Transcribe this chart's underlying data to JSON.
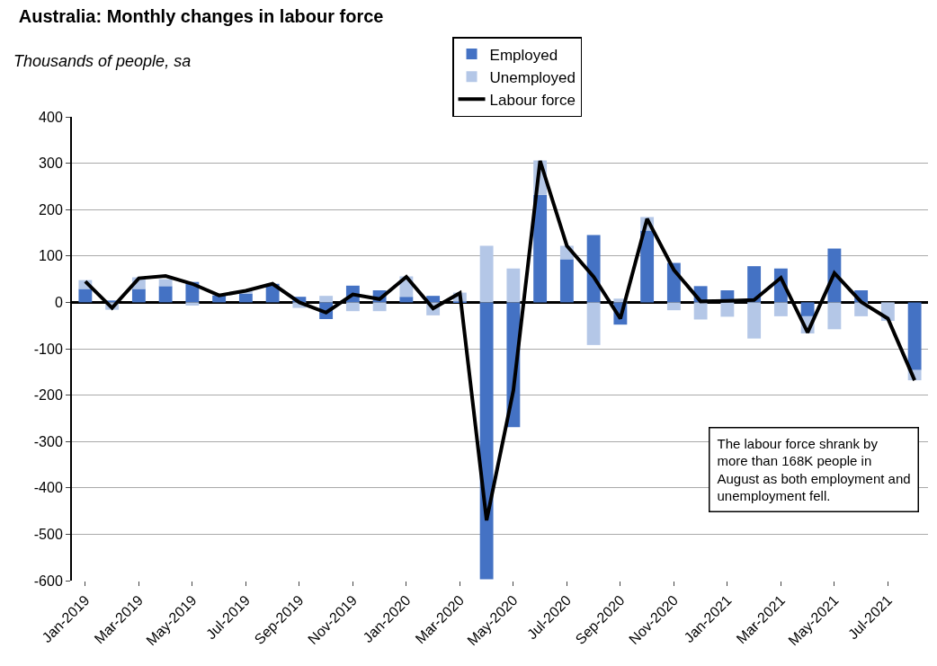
{
  "chart_data": {
    "type": "bar",
    "stacked": true,
    "title": "Australia: Monthly changes in labour force",
    "ylabel": "Thousands of people, sa",
    "categories": [
      "Jan-2019",
      null,
      "Mar-2019",
      null,
      "May-2019",
      null,
      "Jul-2019",
      null,
      "Sep-2019",
      null,
      "Nov-2019",
      null,
      "Jan-2020",
      null,
      "Mar-2020",
      null,
      "May-2020",
      null,
      "Jul-2020",
      null,
      "Sep-2020",
      null,
      "Nov-2020",
      null,
      "Jan-2021",
      null,
      "Mar-2021",
      null,
      "May-2021",
      null,
      "Jul-2021",
      null
    ],
    "series": [
      {
        "name": "Employed",
        "color": "#4472c4",
        "values": [
          29,
          4,
          29,
          35,
          44,
          15,
          19,
          40,
          12,
          -36,
          36,
          26,
          12,
          14,
          2,
          -597,
          -269,
          232,
          93,
          145,
          -48,
          155,
          85,
          35,
          26,
          78,
          73,
          -30,
          116,
          26,
          null,
          -146
        ]
      },
      {
        "name": "Unemployed",
        "color": "#b4c7e7",
        "values": [
          19,
          -16,
          25,
          15,
          -7,
          0,
          5,
          null,
          -12,
          14,
          -19,
          -19,
          44,
          -28,
          19,
          122,
          73,
          74,
          29,
          -92,
          8,
          29,
          -17,
          -37,
          -31,
          -78,
          -30,
          -37,
          -58,
          -30,
          -40,
          -22
        ]
      },
      {
        "name": "Labour force",
        "type": "line",
        "color": "#000000",
        "values": [
          45,
          -12,
          52,
          57,
          40,
          15,
          25,
          40,
          0,
          -22,
          17,
          7,
          55,
          -13,
          20,
          -470,
          -190,
          305,
          122,
          55,
          -35,
          180,
          70,
          2,
          3,
          5,
          53,
          -65,
          63,
          1,
          -35,
          -168
        ]
      }
    ],
    "ylim": [
      -600,
      400
    ],
    "yticks": [
      -600,
      -500,
      -400,
      -300,
      -200,
      -100,
      0,
      100,
      200,
      300,
      400
    ],
    "grid": "y",
    "legend": "top",
    "annotations": [
      "The labour force shrank by more than 168K people in August as both employment and unemployment fell."
    ]
  }
}
